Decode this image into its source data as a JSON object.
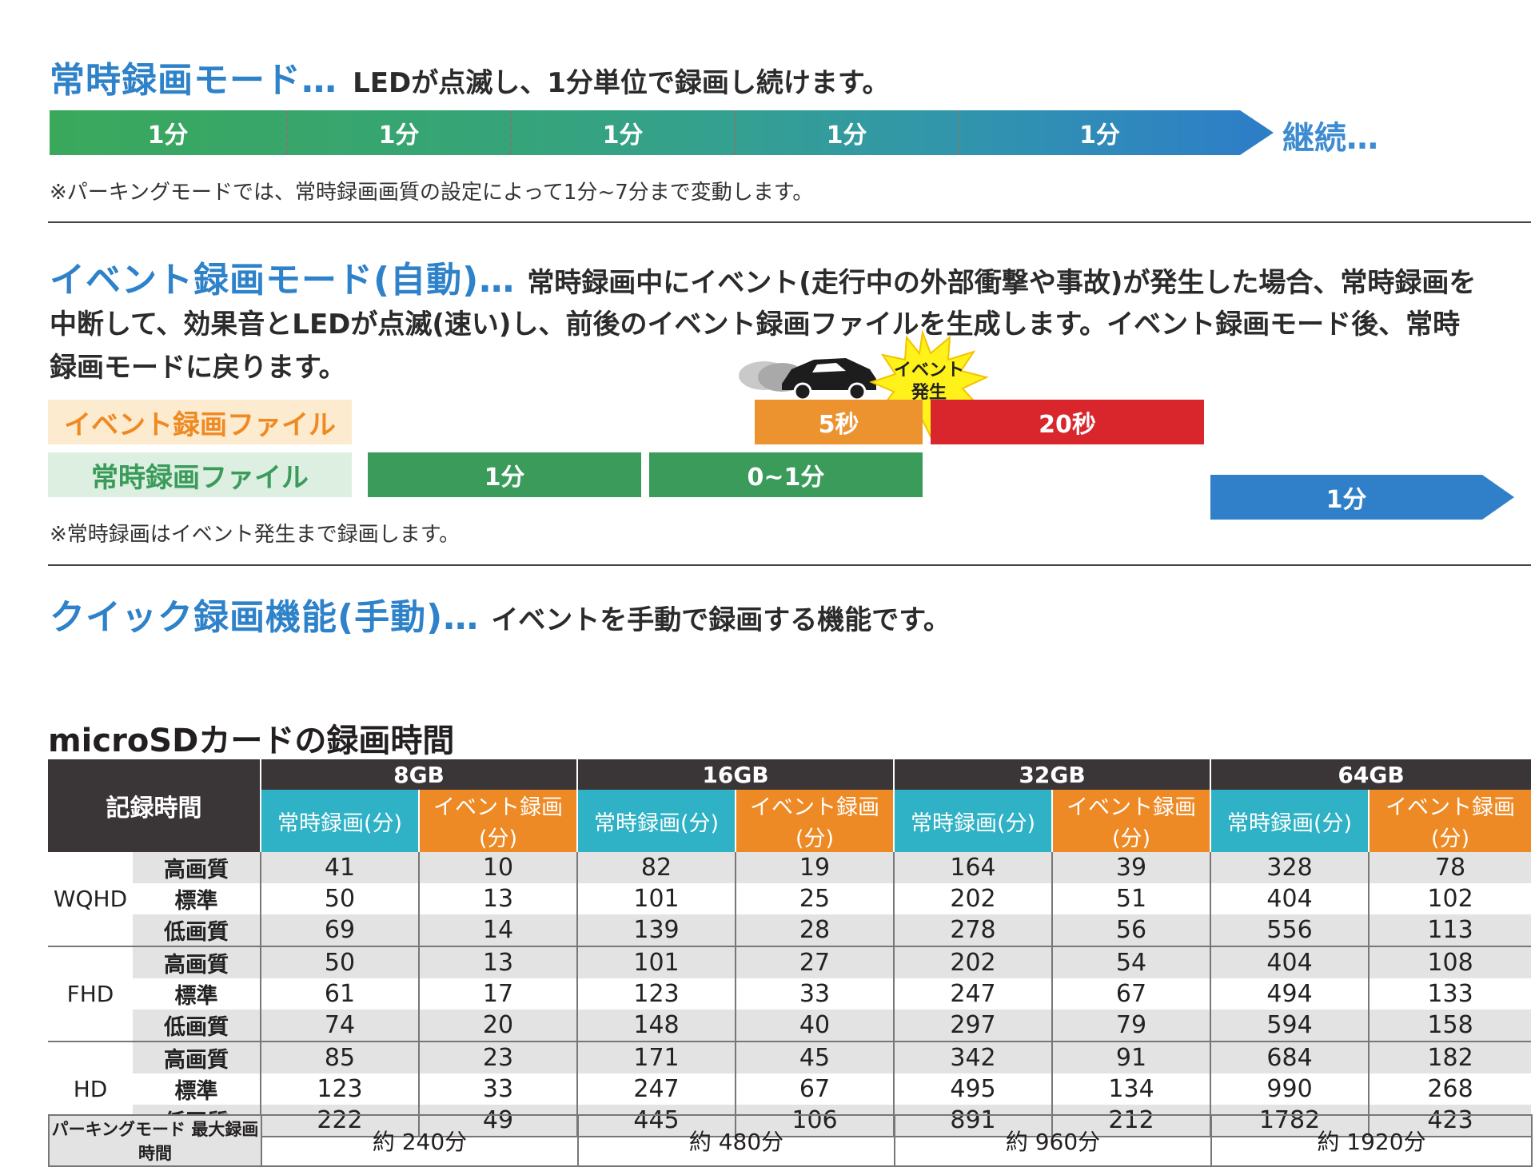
{
  "continuous": {
    "title": "常時録画モード…",
    "description": "LEDが点滅し、1分単位で録画し続けます。",
    "segments": [
      "1分",
      "1分",
      "1分",
      "1分",
      "1分"
    ],
    "segment_colors": [
      "#3aa861",
      "#35a46f",
      "#35a38c",
      "#339aa8",
      "#2f86c6"
    ],
    "continue_label": "継続…",
    "note": "※パーキングモードでは、常時録画画質の設定によって1分~7分まで変動します。"
  },
  "event": {
    "title": "イベント録画モード(自動)…",
    "description_line1": "常時録画中にイベント(走行中の外部衝撃や事故)が発生した場合、常時録画を",
    "description_line2": "中断して、効果音とLEDが点滅(速い)し、前後のイベント録画ファイルを生成します。イベント録画モード後、常時",
    "description_line3": "録画モードに戻ります。",
    "burst_line1": "イベント",
    "burst_line2": "発生",
    "legend_event": "イベント録画ファイル",
    "legend_continuous": "常時録画ファイル",
    "block_5s": "5秒",
    "block_20s": "20秒",
    "block_1min": "1分",
    "block_0to1": "0~1分",
    "block_resume": "1分",
    "note": "※常時録画はイベント発生まで録画します。",
    "colors": {
      "orange": "#ec9330",
      "red": "#d9262c",
      "green": "#3a9b5b",
      "blue": "#2f80c8",
      "legend_event_bg": "#fdebd0",
      "legend_event_fg": "#ef8a22",
      "legend_cont_bg": "#dcefe0",
      "legend_cont_fg": "#3a9b5b"
    }
  },
  "quick": {
    "title": "クイック録画機能(手動)…",
    "description": "イベントを手動で録画する機能です。"
  },
  "table": {
    "title": "microSDカードの録画時間",
    "corner": "記録時間",
    "capacities": [
      "8GB",
      "16GB",
      "32GB",
      "64GB"
    ],
    "sub_headers": [
      "常時録画(分)",
      "イベント録画(分)"
    ],
    "groups": [
      {
        "resolution": "WQHD",
        "rows": [
          {
            "quality": "高画質",
            "values": [
              "41",
              "10",
              "82",
              "19",
              "164",
              "39",
              "328",
              "78"
            ]
          },
          {
            "quality": "標準",
            "values": [
              "50",
              "13",
              "101",
              "25",
              "202",
              "51",
              "404",
              "102"
            ]
          },
          {
            "quality": "低画質",
            "values": [
              "69",
              "14",
              "139",
              "28",
              "278",
              "56",
              "556",
              "113"
            ]
          }
        ]
      },
      {
        "resolution": "FHD",
        "rows": [
          {
            "quality": "高画質",
            "values": [
              "50",
              "13",
              "101",
              "27",
              "202",
              "54",
              "404",
              "108"
            ]
          },
          {
            "quality": "標準",
            "values": [
              "61",
              "17",
              "123",
              "33",
              "247",
              "67",
              "494",
              "133"
            ]
          },
          {
            "quality": "低画質",
            "values": [
              "74",
              "20",
              "148",
              "40",
              "297",
              "79",
              "594",
              "158"
            ]
          }
        ]
      },
      {
        "resolution": "HD",
        "rows": [
          {
            "quality": "高画質",
            "values": [
              "85",
              "23",
              "171",
              "45",
              "342",
              "91",
              "684",
              "182"
            ]
          },
          {
            "quality": "標準",
            "values": [
              "123",
              "33",
              "247",
              "67",
              "495",
              "134",
              "990",
              "268"
            ]
          },
          {
            "quality": "低画質",
            "values": [
              "222",
              "49",
              "445",
              "106",
              "891",
              "212",
              "1782",
              "423"
            ]
          }
        ]
      }
    ],
    "parking_label": "パーキングモード 最大録画時間",
    "parking_values": [
      "約 240分",
      "約 480分",
      "約 960分",
      "約 1920分"
    ]
  }
}
